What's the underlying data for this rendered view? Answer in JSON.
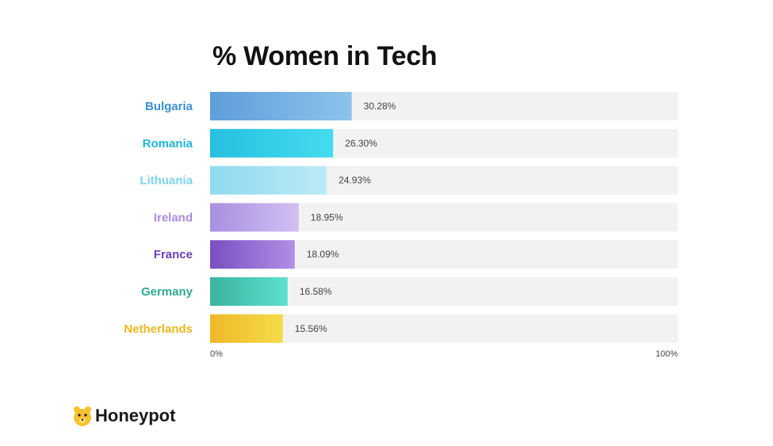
{
  "chart_data": {
    "type": "bar",
    "orientation": "horizontal",
    "title": "% Women in Tech",
    "categories": [
      "Bulgaria",
      "Romania",
      "Lithuania",
      "Ireland",
      "France",
      "Germany",
      "Netherlands"
    ],
    "values": [
      30.28,
      26.3,
      24.93,
      18.95,
      18.09,
      16.58,
      15.56
    ],
    "value_labels": [
      "30.28%",
      "26.30%",
      "24.93%",
      "18.95%",
      "18.09%",
      "16.58%",
      "15.56%"
    ],
    "xlim": [
      0,
      100
    ],
    "x_tick_labels": [
      "0%",
      "100%"
    ],
    "grid": false,
    "legend": "none",
    "colors": [
      [
        "#5f9ddc",
        "#8ec3ea"
      ],
      [
        "#27bfe0",
        "#45dcef"
      ],
      [
        "#8fd9f0",
        "#bdebf6"
      ],
      [
        "#a98fe0",
        "#d2c0f3"
      ],
      [
        "#7a4fc2",
        "#b08fe6"
      ],
      [
        "#3bb3a0",
        "#5fe0cf"
      ],
      [
        "#efb829",
        "#f5dc4a"
      ]
    ],
    "label_colors": [
      "#3c8fd2",
      "#1fb5d6",
      "#7dd4ee",
      "#a98be0",
      "#6a3fb8",
      "#2ea996",
      "#eab81f"
    ],
    "track_color": "#f2f2f2"
  },
  "brand": {
    "name": "Honeypot",
    "logo_icon": "honeypot-bear-icon",
    "logo_color": "#f7c22f"
  }
}
